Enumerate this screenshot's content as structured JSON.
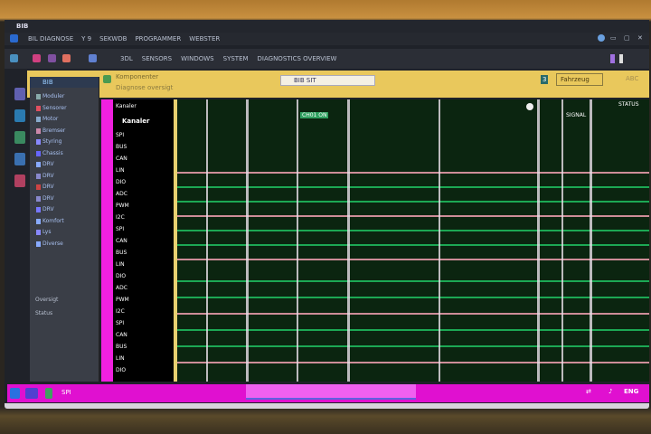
{
  "window": {
    "title": "BIB"
  },
  "menubar": {
    "items": [
      "BIL DIAGNOSE",
      "Y 9",
      "SEKWDB",
      "PROGRAMMER",
      "WEBSTER"
    ]
  },
  "toolbar": {
    "items": [
      "3DL",
      "SENSORS",
      "WINDOWS",
      "SYSTEM",
      "DIAGNOSTICS OVERVIEW"
    ]
  },
  "header": {
    "title": "Komponenter",
    "subtitle": "Diagnose oversigt",
    "search_value": "BIB SIT",
    "badge": "3",
    "action_label": "Fahrzeug",
    "right_label": "ABC"
  },
  "tree": {
    "root": "BIB",
    "items": [
      "Moduler",
      "Sensorer",
      "Motor",
      "Bremser",
      "Styring",
      "Chassis",
      "DRV",
      "DRV",
      "DRV",
      "DRV",
      "DRV",
      "Komfort",
      "Lys",
      "Diverse"
    ],
    "footer": [
      "Oversigt",
      "Status"
    ]
  },
  "list": {
    "header": "Kanaler",
    "title": "Kanaler",
    "rows": [
      "SPI",
      "BUS",
      "CAN",
      "LIN",
      "DIO",
      "ADC",
      "PWM",
      "I2C",
      "SPI",
      "CAN",
      "BUS",
      "LIN",
      "DIO",
      "ADC",
      "PWM",
      "I2C",
      "SPI",
      "CAN",
      "BUS",
      "LIN",
      "DIO"
    ]
  },
  "grid": {
    "label_left": "CH01 ON",
    "label_right": "STATUS",
    "marker_label": "SIGNAL"
  },
  "taskbar": {
    "label": "SPI",
    "tray": "ENG"
  },
  "colors": {
    "accent_magenta": "#e010d0",
    "header_yellow": "#e9c85c",
    "grid_green": "#0b2510",
    "trace_green": "#20c060",
    "trace_pink": "#f0a0b0"
  }
}
